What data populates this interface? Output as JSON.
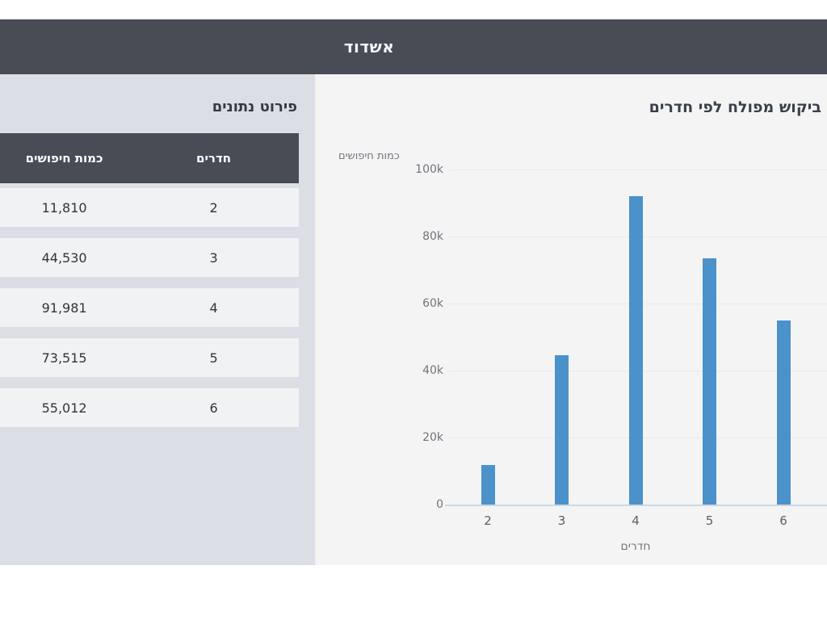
{
  "header": {
    "title": "אשדוד"
  },
  "sidebar": {
    "heading": "פירוט נתונים",
    "table": {
      "columns": [
        {
          "key": "rooms",
          "label": "חדרים"
        },
        {
          "key": "searches",
          "label": "כמות חיפושים"
        }
      ],
      "rows": [
        {
          "rooms": "2",
          "searches": "11,810"
        },
        {
          "rooms": "3",
          "searches": "44,530"
        },
        {
          "rooms": "4",
          "searches": "91,981"
        },
        {
          "rooms": "5",
          "searches": "73,515"
        },
        {
          "rooms": "6",
          "searches": "55,012"
        }
      ]
    }
  },
  "chart_data": {
    "type": "bar",
    "title": "ביקוש מפולח לפי חדרים",
    "xlabel": "חדרים",
    "ylabel": "כמות חיפושים",
    "categories": [
      "2",
      "3",
      "4",
      "5",
      "6"
    ],
    "values": [
      11810,
      44530,
      91981,
      73515,
      55012
    ],
    "ylim": [
      0,
      100000
    ],
    "ytick_labels": [
      "0",
      "20k",
      "40k",
      "60k",
      "80k",
      "100k"
    ],
    "grid": true,
    "legend": false,
    "bar_color": "#4b92cb"
  },
  "colors": {
    "header_bg": "#484c55",
    "accent_bar": "#4b92cb"
  }
}
